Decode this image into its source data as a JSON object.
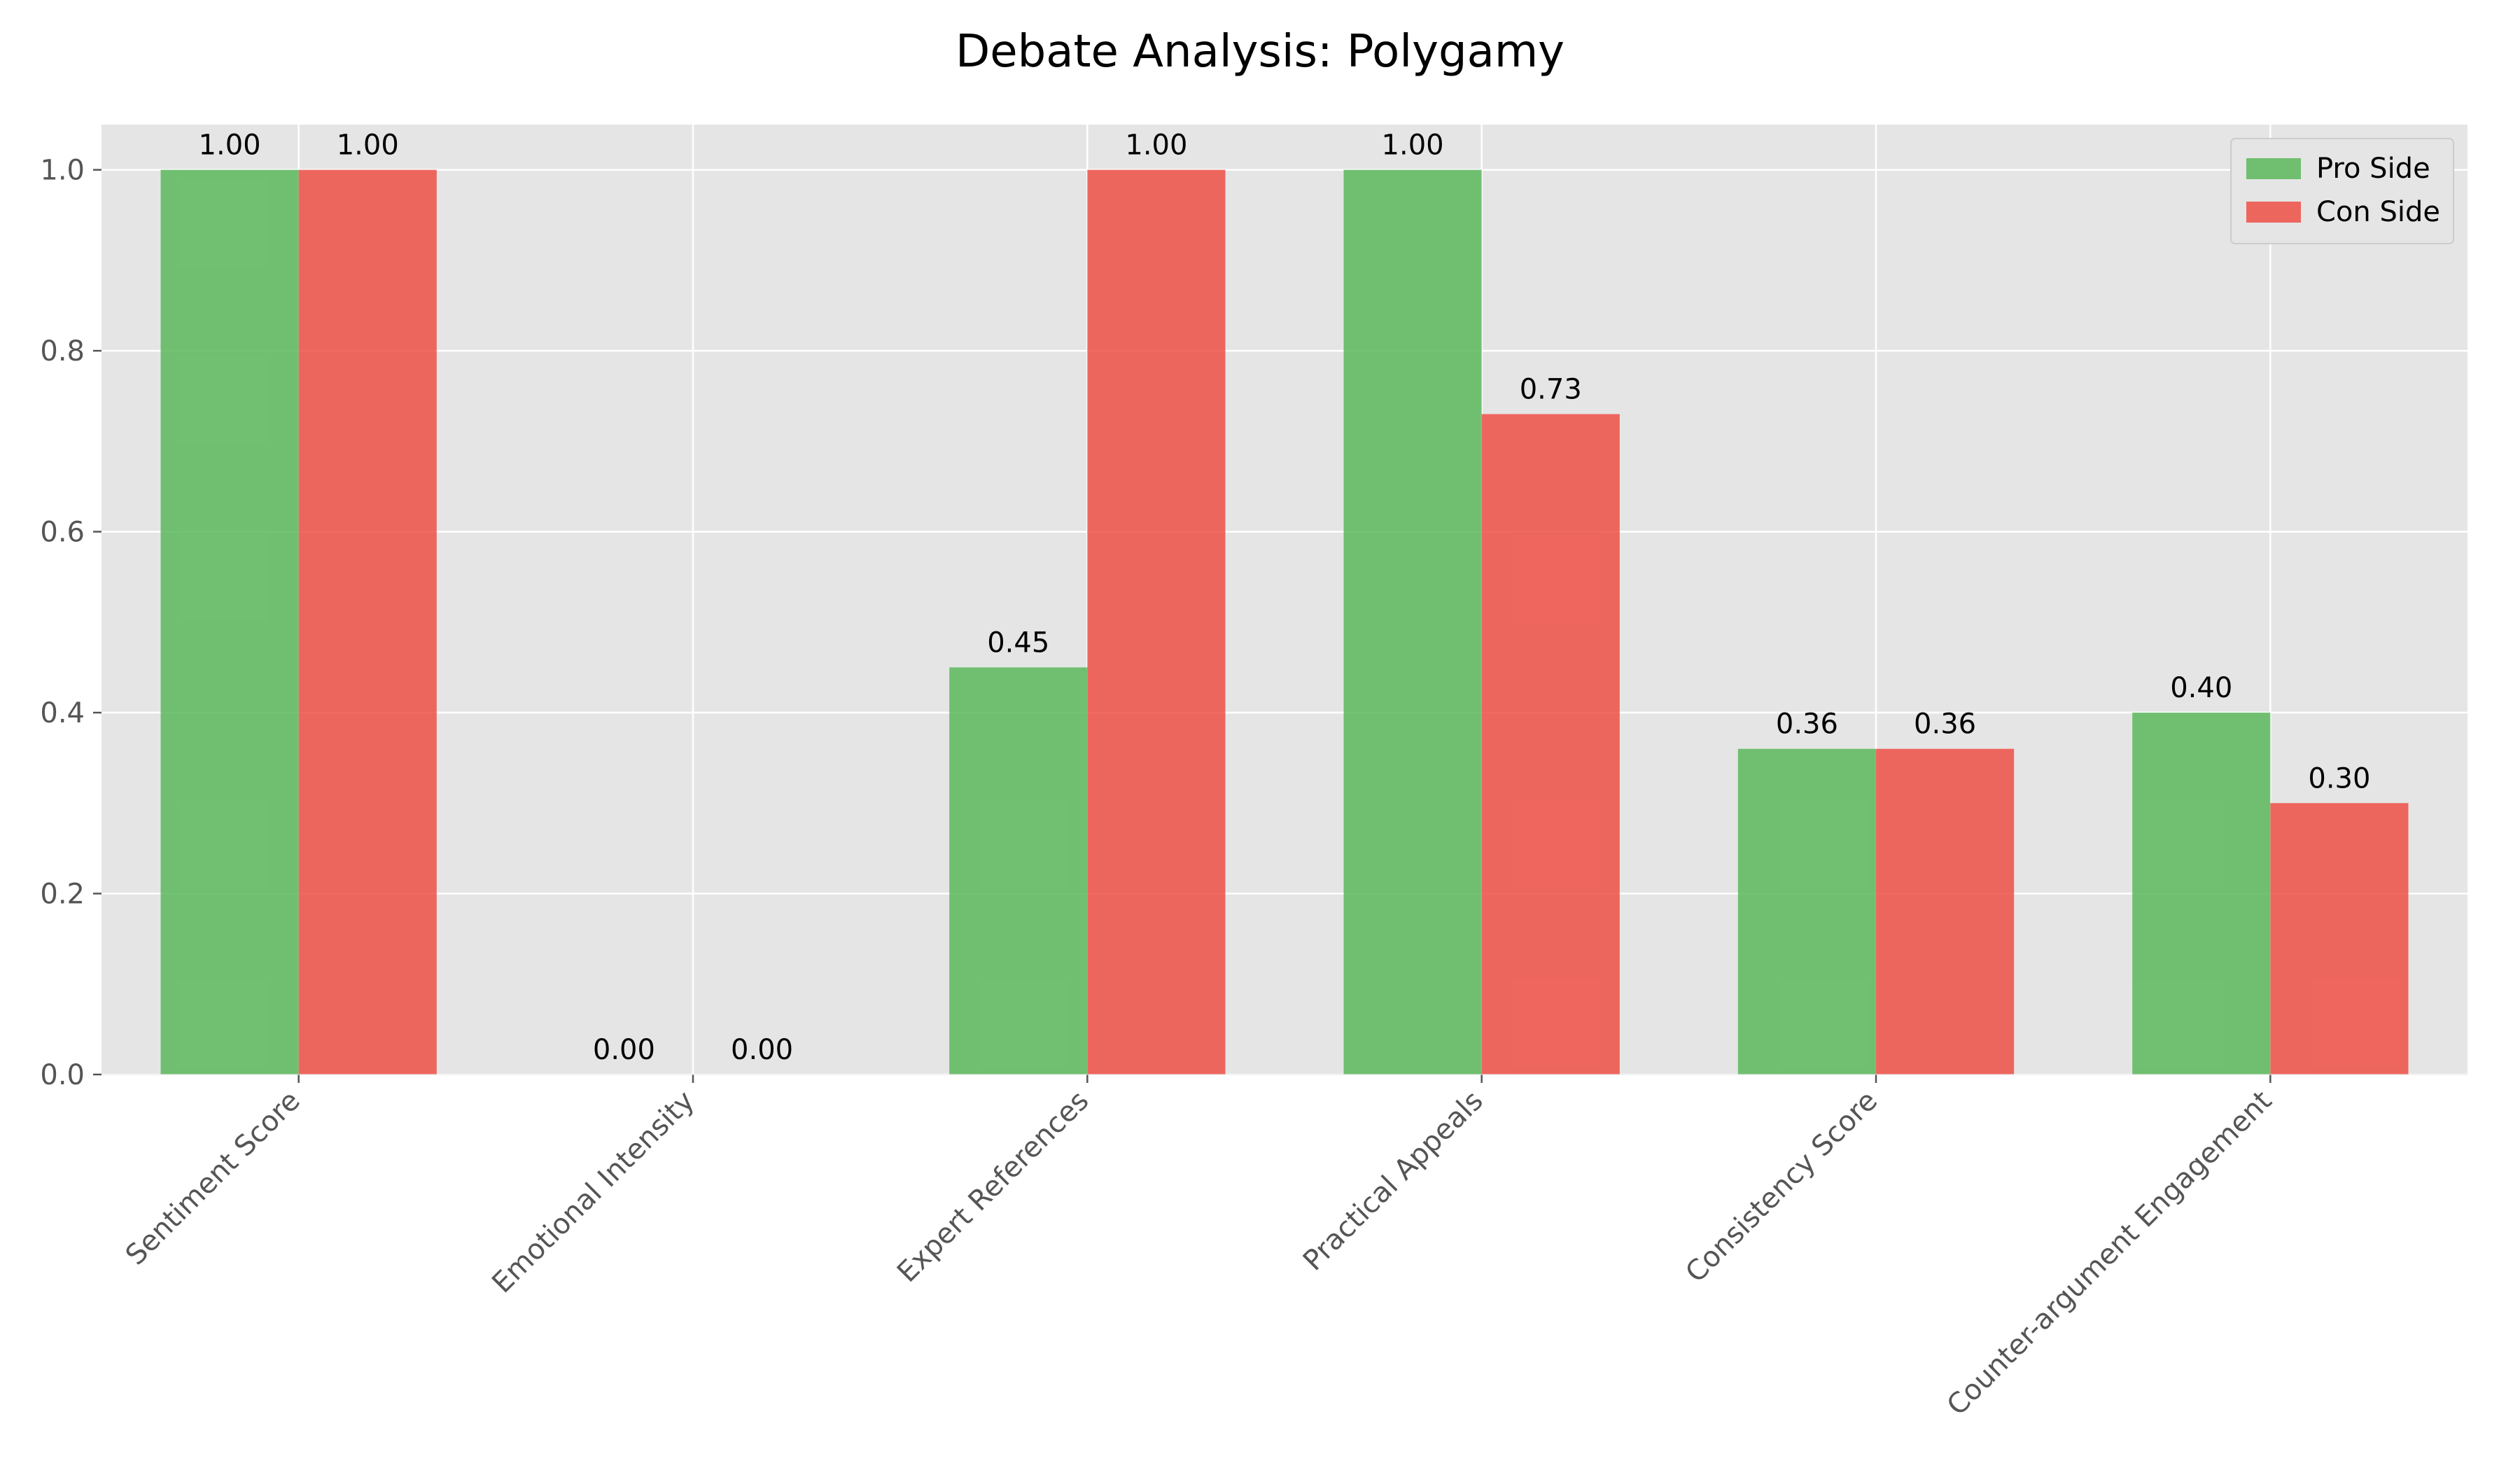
{
  "chart_data": {
    "type": "bar",
    "title": "Debate Analysis: Polygamy",
    "xlabel": "",
    "ylabel": "",
    "categories": [
      "Sentiment Score",
      "Emotional Intensity",
      "Expert References",
      "Practical Appeals",
      "Consistency Score",
      "Counter-argument Engagement"
    ],
    "series": [
      {
        "name": "Pro Side",
        "values": [
          1.0,
          0.0,
          0.45,
          1.0,
          0.36,
          0.4
        ],
        "labels": [
          "1.00",
          "0.00",
          "0.45",
          "1.00",
          "0.36",
          "0.40"
        ],
        "color": "#5cb85c"
      },
      {
        "name": "Con Side",
        "values": [
          1.0,
          0.0,
          1.0,
          0.73,
          0.36,
          0.3
        ],
        "labels": [
          "1.00",
          "0.00",
          "1.00",
          "0.73",
          "0.36",
          "0.30"
        ],
        "color": "#ef5046"
      }
    ],
    "ylim": [
      0,
      1.05
    ],
    "yticks": [
      "0.0",
      "0.2",
      "0.4",
      "0.6",
      "0.8",
      "1.0"
    ],
    "grid": true,
    "legend": "top-right",
    "background": "#e5e5e5"
  }
}
